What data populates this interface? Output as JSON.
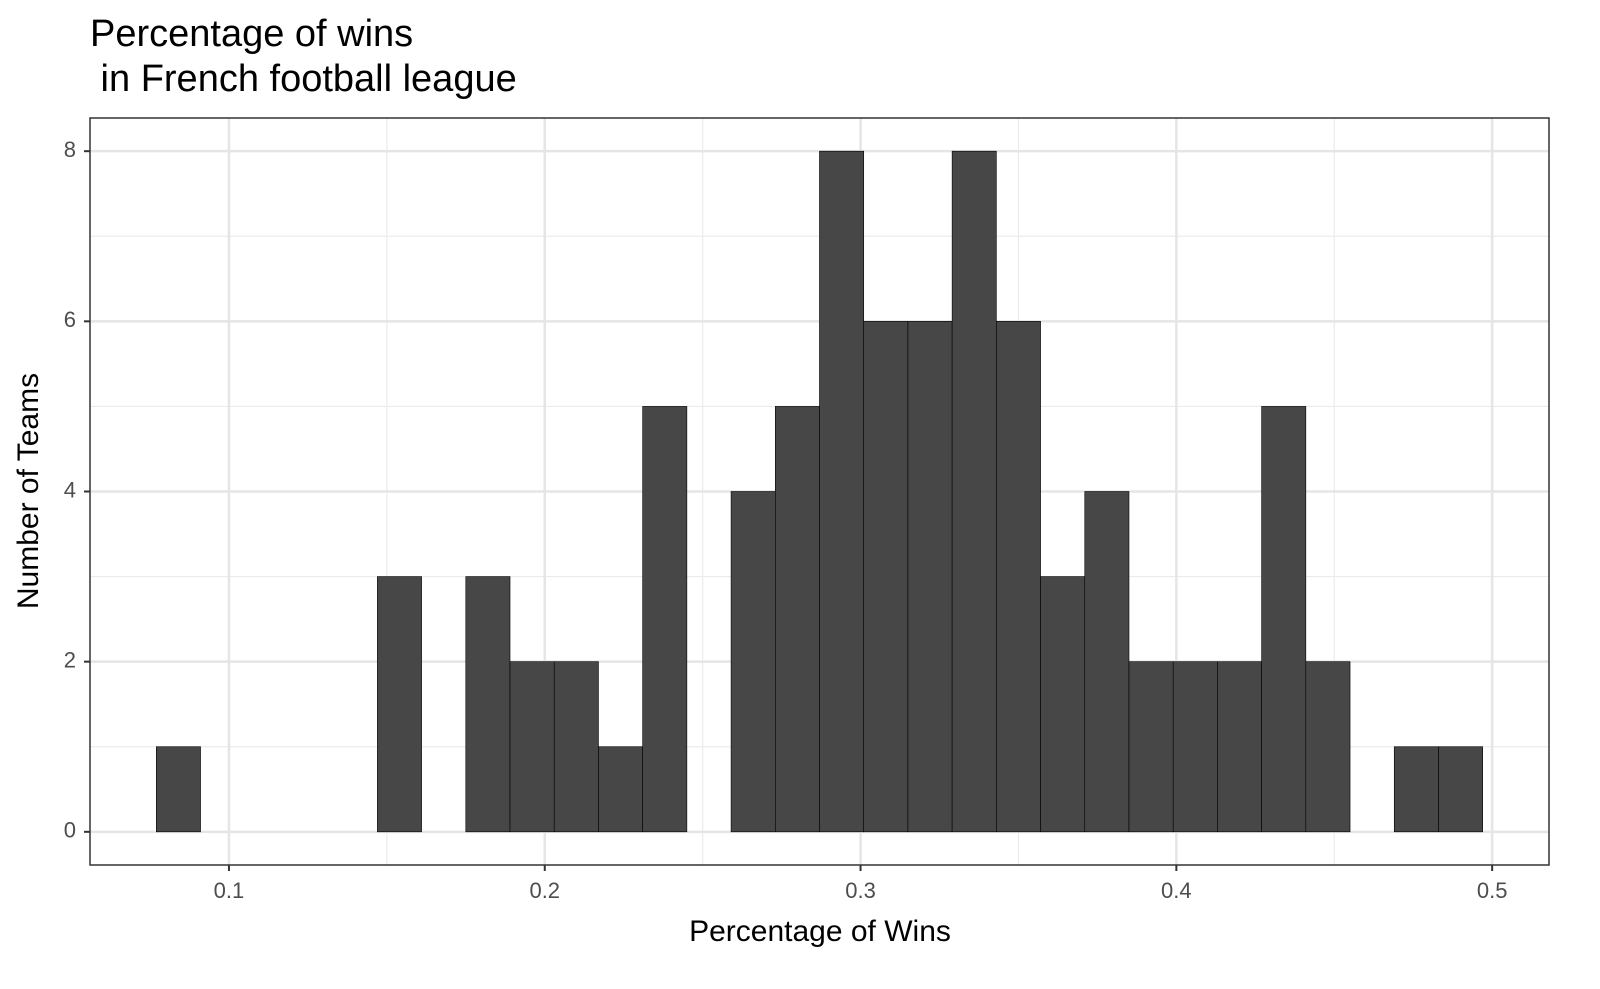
{
  "chart_data": {
    "type": "histogram",
    "title": "Percentage of wins\n in French football league",
    "x_label": "Percentage of Wins",
    "y_label": "Number of Teams",
    "bins": [
      0.077,
      0.091,
      0.105,
      0.119,
      0.133,
      0.147,
      0.161,
      0.175,
      0.189,
      0.203,
      0.217,
      0.231,
      0.245,
      0.259,
      0.273,
      0.287,
      0.301,
      0.315,
      0.329,
      0.343,
      0.357,
      0.371,
      0.385,
      0.399,
      0.413,
      0.427,
      0.441,
      0.455,
      0.469,
      0.483,
      0.497
    ],
    "counts": [
      1,
      0,
      0,
      0,
      0,
      3,
      0,
      3,
      2,
      2,
      1,
      5,
      0,
      4,
      5,
      8,
      6,
      6,
      8,
      6,
      3,
      4,
      2,
      2,
      2,
      5,
      2,
      0,
      1,
      1
    ],
    "color": "#474747",
    "xlim": [
      0.056,
      0.518
    ],
    "ylim": [
      -0.39,
      8.39
    ],
    "xticks": [
      0.1,
      0.2,
      0.3,
      0.4,
      0.5
    ],
    "yticks": [
      0,
      2,
      4,
      6,
      8
    ],
    "grid": true
  }
}
